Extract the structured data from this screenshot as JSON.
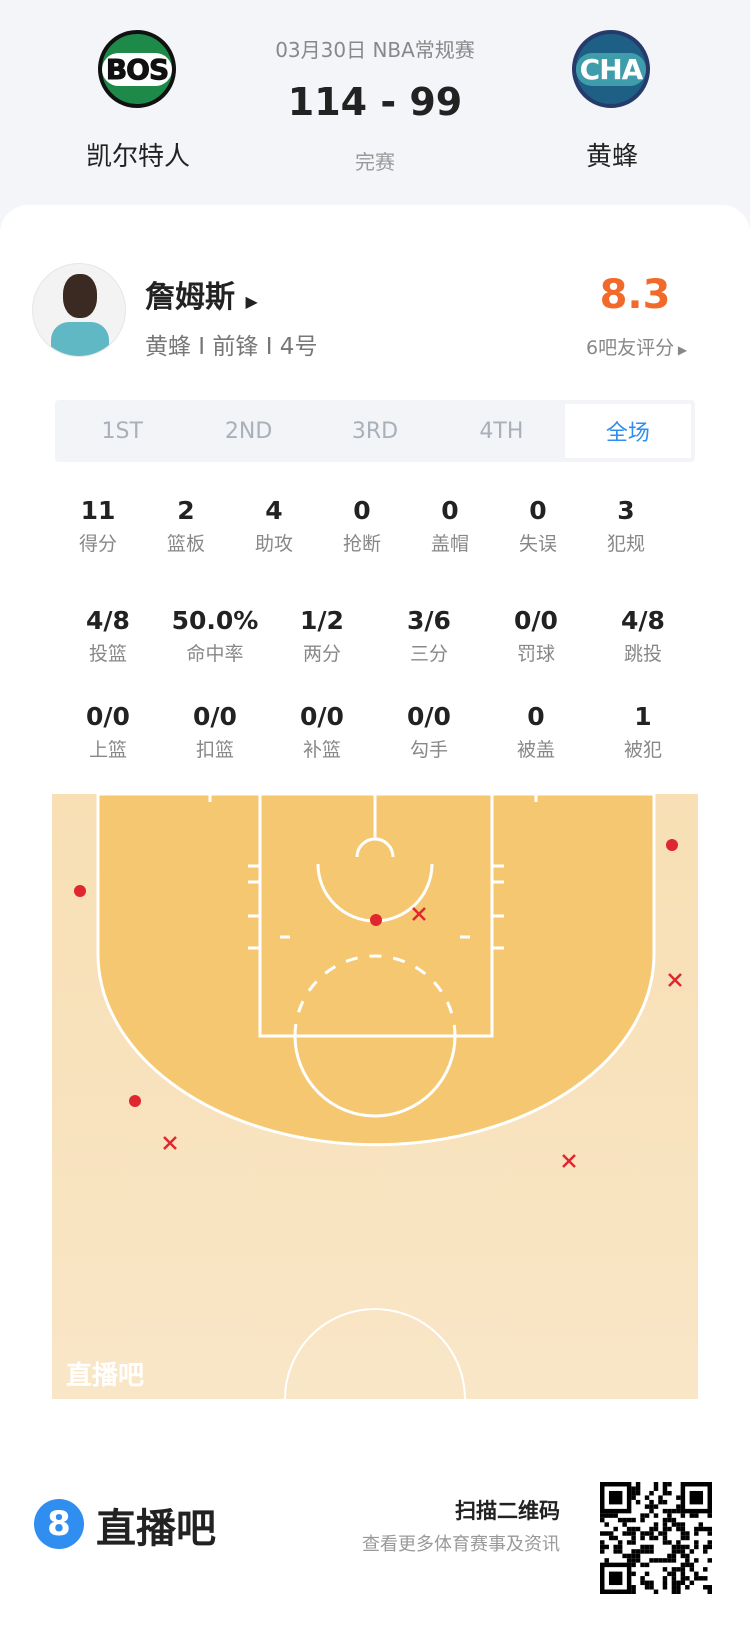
{
  "game": {
    "date_league": "03月30日 NBA常规赛",
    "score": "114 - 99",
    "status": "完赛",
    "home": {
      "abbr": "BOS",
      "name": "凯尔特人"
    },
    "away": {
      "abbr": "CHA",
      "name": "黄蜂"
    }
  },
  "player": {
    "name": "詹姆斯",
    "info": "黄蜂 I 前锋 I 4号",
    "rating": "8.3",
    "rating_label": "6吧友评分",
    "rating_color": "#f26a2a"
  },
  "tabs": [
    "1ST",
    "2ND",
    "3RD",
    "4TH",
    "全场"
  ],
  "active_tab": "全场",
  "stats": [
    [
      {
        "v": "11",
        "l": "得分"
      },
      {
        "v": "2",
        "l": "篮板"
      },
      {
        "v": "4",
        "l": "助攻"
      },
      {
        "v": "0",
        "l": "抢断"
      },
      {
        "v": "0",
        "l": "盖帽"
      },
      {
        "v": "0",
        "l": "失误"
      },
      {
        "v": "3",
        "l": "犯规"
      }
    ],
    [
      {
        "v": "4/8",
        "l": "投篮"
      },
      {
        "v": "50.0%",
        "l": "命中率"
      },
      {
        "v": "1/2",
        "l": "两分"
      },
      {
        "v": "3/6",
        "l": "三分"
      },
      {
        "v": "0/0",
        "l": "罚球"
      },
      {
        "v": "4/8",
        "l": "跳投"
      }
    ],
    [
      {
        "v": "0/0",
        "l": "上篮"
      },
      {
        "v": "0/0",
        "l": "扣篮"
      },
      {
        "v": "0/0",
        "l": "补篮"
      },
      {
        "v": "0/0",
        "l": "勾手"
      },
      {
        "v": "0",
        "l": "被盖"
      },
      {
        "v": "1",
        "l": "被犯"
      }
    ]
  ],
  "shots": [
    {
      "made": true
    },
    {
      "made": true
    },
    {
      "made": true
    },
    {
      "made": true
    },
    {
      "made": false
    },
    {
      "made": false
    },
    {
      "made": false
    },
    {
      "made": false
    }
  ],
  "court_watermark": "直播吧",
  "footer": {
    "brand": "直播吧",
    "brand_icon": "8",
    "scan": "扫描二维码",
    "sub": "查看更多体育赛事及资讯"
  }
}
